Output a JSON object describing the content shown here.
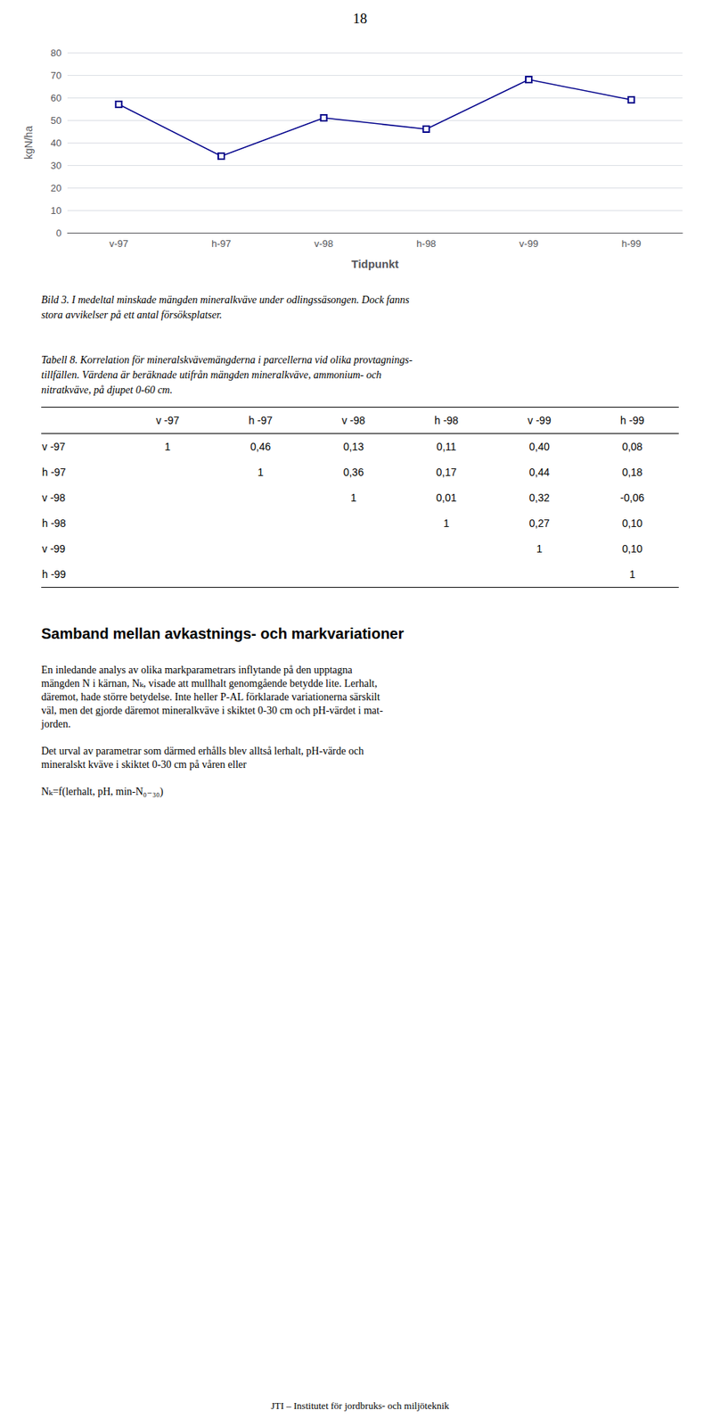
{
  "chart_data": {
    "type": "line",
    "categories": [
      "v-97",
      "h-97",
      "v-98",
      "h-98",
      "v-99",
      "h-99"
    ],
    "values": [
      57,
      34,
      51,
      46,
      68,
      59
    ],
    "xlabel": "Tidpunkt",
    "ylabel": "kgN/ha",
    "ylim": [
      0,
      80
    ],
    "yticks": [
      0,
      10,
      20,
      30,
      40,
      50,
      60,
      70,
      80
    ],
    "color": "#00008B",
    "marker": "square",
    "grid": true
  },
  "page_number": "18",
  "caption_bild": "Bild 3. I medeltal minskade mängden mineralkväve under odlingssäsongen. Dock fanns\nstora avvikelser på ett antal försöksplatser.",
  "caption_tabell": [
    "Tabell 8. Korrelation för mineralskvävemängderna i parcellerna vid olika provtagnings-",
    "tillfällen. Värdena är beräknade utifrån mängden mineralkväve, ammonium- och",
    "nitratkväve, på djupet 0-60 cm."
  ],
  "table": {
    "headers": [
      null,
      "v -97",
      "h -97",
      "v -98",
      "h -98",
      "v -99",
      "h -99"
    ],
    "rows": [
      [
        "v -97",
        "1",
        "0,46",
        "0,13",
        "0,11",
        "0,40",
        "0,08"
      ],
      [
        "h -97",
        null,
        "1",
        "0,36",
        "0,17",
        "0,44",
        "0,18"
      ],
      [
        "v -98",
        null,
        null,
        "1",
        "0,01",
        "0,32",
        "-0,06"
      ],
      [
        "h -98",
        null,
        null,
        null,
        "1",
        "0,27",
        "0,10"
      ],
      [
        "v -99",
        null,
        null,
        null,
        null,
        "1",
        "0,10"
      ],
      [
        "h -99",
        null,
        null,
        null,
        null,
        null,
        "1"
      ]
    ]
  },
  "section_heading": "Samband mellan avkastnings- och markvariationer",
  "body_paragraphs": [
    [
      "En inledande analys av olika markparametrars inflytande på den upptagna",
      "mängden N i kärnan, Nₖ, visade att mullhalt genomgående betydde lite. Lerhalt,",
      "däremot, hade större betydelse. Inte heller P-AL förklarade variationerna särskilt",
      "väl, men det gjorde däremot mineralkväve i skiktet 0-30 cm och pH-värdet i mat-",
      "jorden."
    ],
    [
      "Det urval av parametrar som därmed erhålls blev alltså lerhalt, pH-värde och",
      "mineralskt kväve i skiktet 0-30 cm på våren eller"
    ]
  ],
  "formula": "Nₖ=f(lerhalt, pH, min-N₀₋₃₀)",
  "footer": "JTI – Institutet för jordbruks- och miljöteknik"
}
